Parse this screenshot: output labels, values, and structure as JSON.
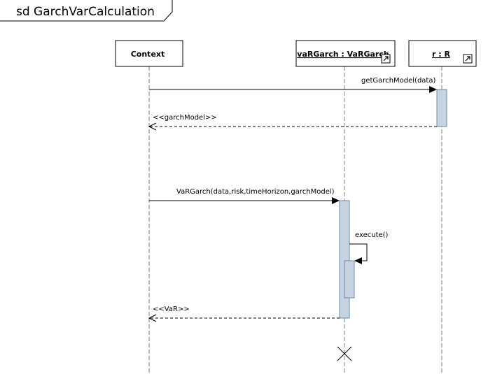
{
  "diagram": {
    "frame_label": "sd GarchVarCalculation"
  },
  "lifelines": {
    "context": {
      "label": "Context",
      "underlined": false,
      "ref_icon": ""
    },
    "vargarch": {
      "label": "vaRGarch : VaRGarch",
      "underlined": true,
      "ref_icon": "expand-icon"
    },
    "r": {
      "label": "r : R",
      "underlined": true,
      "ref_icon": "expand-icon"
    }
  },
  "messages": {
    "get_garch_model": {
      "label": "getGarchModel(data)",
      "kind": "synchronous"
    },
    "garch_model_reply": {
      "label": "<<garchModel>>",
      "kind": "reply"
    },
    "vargarch_create": {
      "label": "VaRGarch(data,risk,timeHorizon,garchModel)",
      "kind": "synchronous"
    },
    "execute": {
      "label": "execute()",
      "kind": "self-call"
    },
    "var_reply": {
      "label": "<<VaR>>",
      "kind": "reply"
    }
  },
  "destruction": {
    "lifeline": "vargarch",
    "icon": "x-destroy-icon"
  },
  "colors": {
    "activation_fill": "#c5d4e0",
    "activation_stroke": "#6a8aa5",
    "lifeline_stroke": "#808080"
  }
}
